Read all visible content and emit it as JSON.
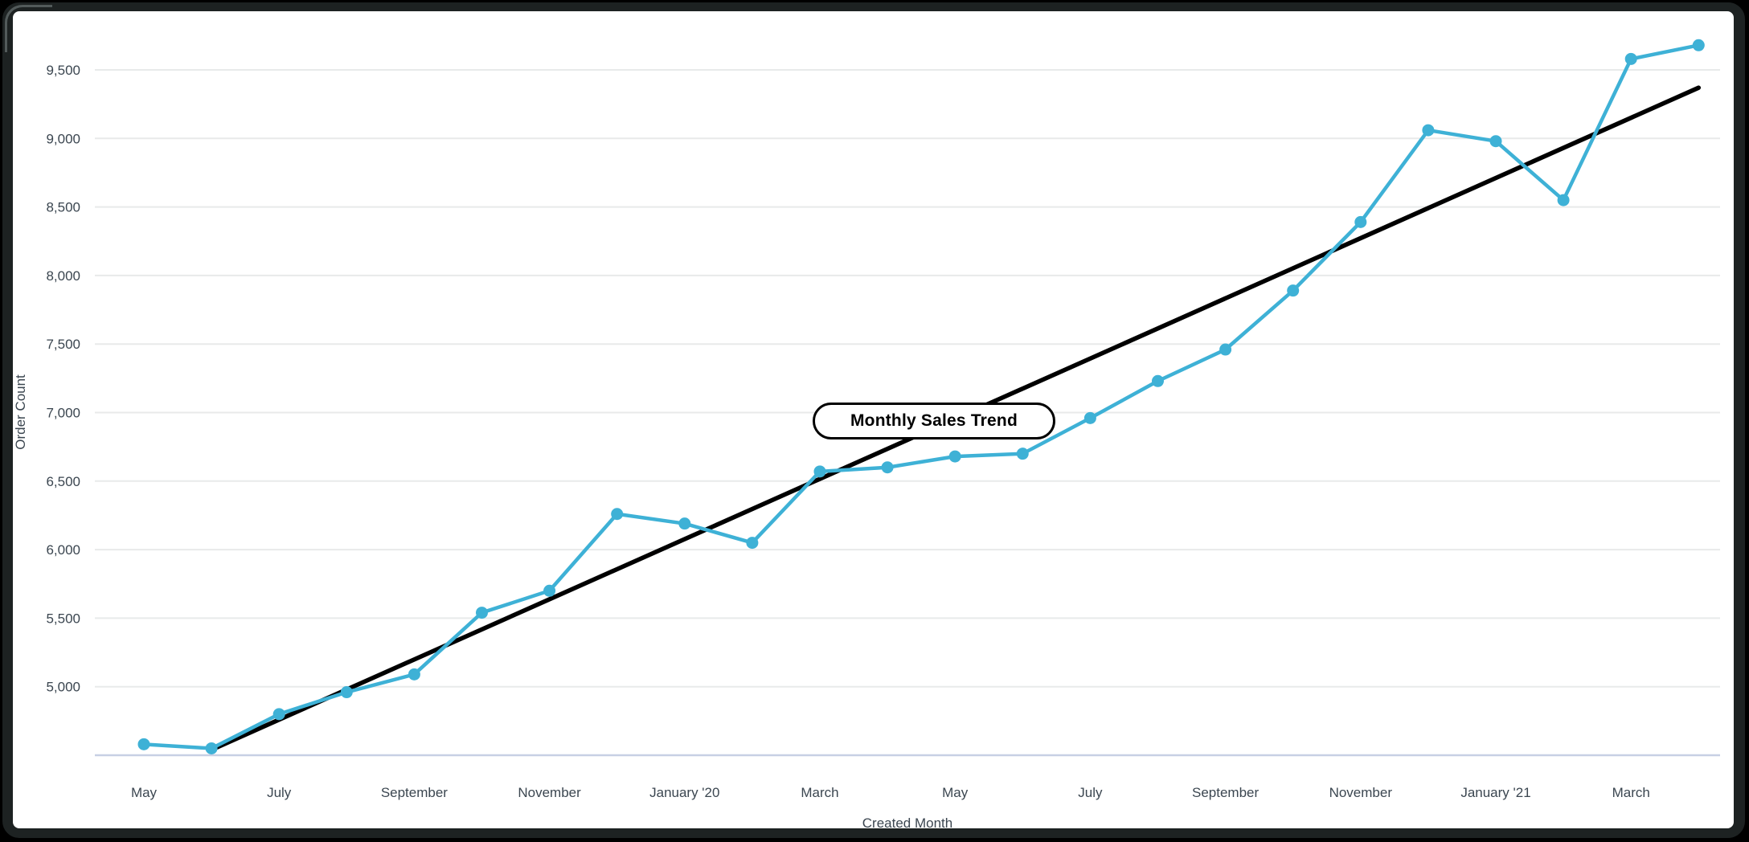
{
  "frame": {
    "background": "#000000",
    "bezel_color": "#1d2222",
    "card_color": "#ffffff"
  },
  "chart_data": {
    "type": "line",
    "annotation_label": "Monthly Sales Trend",
    "xlabel": "Created Month",
    "ylabel": "Order Count",
    "ylim": [
      4500,
      9750
    ],
    "grid": "horizontal",
    "legend_position": "none",
    "yticks": [
      5000,
      5500,
      6000,
      6500,
      7000,
      7500,
      8000,
      8500,
      9000,
      9500
    ],
    "ytick_labels": [
      "5,000",
      "5,500",
      "6,000",
      "6,500",
      "7,000",
      "7,500",
      "8,000",
      "8,500",
      "9,000",
      "9,500"
    ],
    "x_tick_positions": [
      0,
      2,
      4,
      6,
      8,
      10,
      12,
      14,
      16,
      18,
      20,
      22
    ],
    "x_tick_labels": [
      "May",
      "July",
      "September",
      "November",
      "January '20",
      "March",
      "May",
      "July",
      "September",
      "November",
      "January '21",
      "March"
    ],
    "series": [
      {
        "name": "Order Count",
        "color": "#3eb1d6",
        "values": [
          4580,
          4550,
          4800,
          4960,
          5090,
          5540,
          5700,
          6260,
          6190,
          6050,
          6570,
          6600,
          6680,
          6700,
          6960,
          7230,
          7460,
          7890,
          8390,
          9060,
          8980,
          8550,
          9580,
          9680
        ]
      }
    ],
    "trend_line": {
      "color": "#000000",
      "start_index": 1,
      "start_value": 4540,
      "end_index": 23,
      "end_value": 9370
    },
    "colors": {
      "grid": "#e8eaea",
      "baseline": "#c7d0e4",
      "text": "#3b4650"
    }
  }
}
